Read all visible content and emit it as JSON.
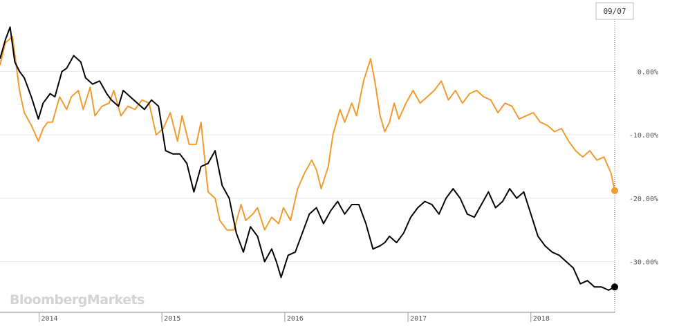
{
  "watermark": "BloombergMarkets",
  "date_marker": "09/07",
  "colors": {
    "series_black": "#000000",
    "series_orange": "#f39a2f",
    "grid": "#e6e6e6",
    "axis": "#888888"
  },
  "chart_data": {
    "type": "line",
    "title": "",
    "xlabel": "",
    "ylabel": "",
    "x_ticks": [
      "2014",
      "2015",
      "2016",
      "2017",
      "2018"
    ],
    "x_range": [
      "2013-09-07",
      "2018-09-07"
    ],
    "y_ticks": [
      "0.00%",
      "-10.00%",
      "-20.00%",
      "-30.00%"
    ],
    "y_tick_values": [
      0,
      -10,
      -20,
      -30
    ],
    "ylim": [
      -38,
      8
    ],
    "grid": true,
    "legend": "none",
    "series": [
      {
        "color": "#f39a2f",
        "x": [
          "2013-09-07",
          "2013-09-23",
          "2013-10-14",
          "2013-11-04",
          "2013-11-18",
          "2013-12-09",
          "2013-12-30",
          "2014-01-13",
          "2014-01-27",
          "2014-02-10",
          "2014-03-03",
          "2014-03-24",
          "2014-04-07",
          "2014-04-28",
          "2014-05-12",
          "2014-06-02",
          "2014-06-16",
          "2014-07-07",
          "2014-07-28",
          "2014-08-11",
          "2014-09-01",
          "2014-09-22",
          "2014-10-13",
          "2014-11-03",
          "2014-11-24",
          "2014-12-15",
          "2015-01-05",
          "2015-01-26",
          "2015-02-16",
          "2015-03-02",
          "2015-03-23",
          "2015-04-13",
          "2015-04-27",
          "2015-05-18",
          "2015-06-08",
          "2015-06-22",
          "2015-07-13",
          "2015-08-03",
          "2015-08-24",
          "2015-09-07",
          "2015-09-28",
          "2015-10-12",
          "2015-11-02",
          "2015-11-23",
          "2015-12-14",
          "2015-12-28",
          "2016-01-18",
          "2016-02-08",
          "2016-02-29",
          "2016-03-21",
          "2016-04-04",
          "2016-04-18",
          "2016-05-09",
          "2016-05-23",
          "2016-06-13",
          "2016-06-27",
          "2016-07-18",
          "2016-08-01",
          "2016-08-22",
          "2016-09-12",
          "2016-09-26",
          "2016-10-10",
          "2016-10-24",
          "2016-11-07",
          "2016-11-21",
          "2016-12-05",
          "2016-12-26",
          "2017-01-16",
          "2017-02-06",
          "2017-02-27",
          "2017-03-20",
          "2017-04-10",
          "2017-05-01",
          "2017-05-22",
          "2017-06-12",
          "2017-07-03",
          "2017-07-24",
          "2017-08-14",
          "2017-09-04",
          "2017-09-25",
          "2017-10-16",
          "2017-11-06",
          "2017-11-27",
          "2017-12-18",
          "2018-01-08",
          "2018-01-29",
          "2018-02-19",
          "2018-03-12",
          "2018-04-02",
          "2018-04-23",
          "2018-05-14",
          "2018-06-04",
          "2018-06-25",
          "2018-07-16",
          "2018-08-06",
          "2018-08-27",
          "2018-09-07"
        ],
        "y": [
          1.0,
          4.5,
          5.5,
          -3.0,
          -6.5,
          -8.5,
          -11.0,
          -9.0,
          -8.0,
          -8.0,
          -4.0,
          -6.0,
          -4.0,
          -3.0,
          -6.0,
          -2.5,
          -7.0,
          -5.5,
          -5.0,
          -3.0,
          -7.0,
          -5.5,
          -6.0,
          -4.5,
          -5.0,
          -10.0,
          -9.0,
          -6.5,
          -11.0,
          -7.0,
          -11.5,
          -11.5,
          -8.0,
          -19.0,
          -20.0,
          -23.5,
          -25.0,
          -25.0,
          -21.0,
          -23.5,
          -22.5,
          -21.5,
          -25.0,
          -23.0,
          -24.0,
          -21.5,
          -23.5,
          -18.5,
          -16.0,
          -14.0,
          -15.5,
          -18.5,
          -15.0,
          -10.0,
          -6.0,
          -8.0,
          -5.0,
          -7.0,
          -1.5,
          2.0,
          -2.0,
          -7.0,
          -9.5,
          -8.0,
          -5.0,
          -7.5,
          -5.0,
          -3.0,
          -5.0,
          -4.0,
          -3.0,
          -1.5,
          -4.5,
          -3.0,
          -5.0,
          -3.5,
          -3.0,
          -4.0,
          -4.5,
          -6.5,
          -5.0,
          -5.5,
          -7.5,
          -7.0,
          -6.5,
          -8.0,
          -8.5,
          -9.5,
          -9.0,
          -11.0,
          -12.5,
          -13.5,
          -12.5,
          -14.0,
          -13.5,
          -16.0,
          -18.8
        ]
      },
      {
        "color": "#000000",
        "x": [
          "2013-09-07",
          "2013-09-23",
          "2013-10-07",
          "2013-10-21",
          "2013-11-04",
          "2013-11-18",
          "2013-12-09",
          "2013-12-30",
          "2014-01-13",
          "2014-02-03",
          "2014-02-17",
          "2014-03-10",
          "2014-03-24",
          "2014-04-14",
          "2014-05-05",
          "2014-05-19",
          "2014-06-09",
          "2014-06-30",
          "2014-07-21",
          "2014-08-04",
          "2014-08-25",
          "2014-09-08",
          "2014-09-29",
          "2014-10-20",
          "2014-11-10",
          "2014-12-01",
          "2014-12-22",
          "2015-01-12",
          "2015-02-02",
          "2015-02-23",
          "2015-03-16",
          "2015-04-06",
          "2015-04-27",
          "2015-05-18",
          "2015-06-08",
          "2015-06-29",
          "2015-07-20",
          "2015-08-10",
          "2015-08-31",
          "2015-09-21",
          "2015-10-12",
          "2015-11-02",
          "2015-11-23",
          "2015-12-07",
          "2015-12-21",
          "2016-01-11",
          "2016-02-01",
          "2016-02-22",
          "2016-03-14",
          "2016-04-04",
          "2016-04-25",
          "2016-05-16",
          "2016-06-06",
          "2016-06-27",
          "2016-07-18",
          "2016-08-08",
          "2016-08-29",
          "2016-09-19",
          "2016-10-10",
          "2016-10-24",
          "2016-11-07",
          "2016-11-28",
          "2016-12-19",
          "2017-01-09",
          "2017-01-30",
          "2017-02-20",
          "2017-03-13",
          "2017-04-03",
          "2017-04-24",
          "2017-05-15",
          "2017-06-05",
          "2017-06-26",
          "2017-07-17",
          "2017-08-07",
          "2017-08-28",
          "2017-09-18",
          "2017-10-09",
          "2017-10-30",
          "2017-11-20",
          "2017-12-11",
          "2018-01-01",
          "2018-01-22",
          "2018-02-12",
          "2018-03-05",
          "2018-03-26",
          "2018-04-16",
          "2018-05-07",
          "2018-05-28",
          "2018-06-18",
          "2018-07-09",
          "2018-07-30",
          "2018-08-20",
          "2018-09-07"
        ],
        "y": [
          2.0,
          5.0,
          7.0,
          1.5,
          0.0,
          -1.0,
          -4.0,
          -7.5,
          -5.0,
          -3.5,
          -4.0,
          0.0,
          0.5,
          2.5,
          1.5,
          -1.0,
          -2.0,
          -1.5,
          -3.5,
          -4.5,
          -5.5,
          -3.0,
          -4.0,
          -5.0,
          -6.0,
          -4.5,
          -5.5,
          -12.5,
          -13.0,
          -13.0,
          -14.5,
          -19.0,
          -15.0,
          -14.5,
          -12.5,
          -18.0,
          -20.0,
          -25.5,
          -28.5,
          -24.5,
          -26.0,
          -30.0,
          -28.0,
          -30.0,
          -32.5,
          -29.0,
          -28.5,
          -25.5,
          -22.5,
          -21.5,
          -24.0,
          -22.0,
          -20.5,
          -22.5,
          -21.0,
          -21.0,
          -24.0,
          -28.0,
          -27.5,
          -27.0,
          -26.0,
          -27.0,
          -25.5,
          -23.0,
          -21.5,
          -20.5,
          -21.0,
          -22.5,
          -20.0,
          -18.5,
          -20.0,
          -22.5,
          -23.0,
          -21.0,
          -19.0,
          -21.5,
          -20.5,
          -18.5,
          -20.0,
          -19.0,
          -22.5,
          -26.0,
          -27.5,
          -28.5,
          -29.0,
          -30.0,
          -31.0,
          -33.5,
          -33.0,
          -34.0,
          -34.0,
          -34.5,
          -34.0
        ]
      }
    ]
  }
}
